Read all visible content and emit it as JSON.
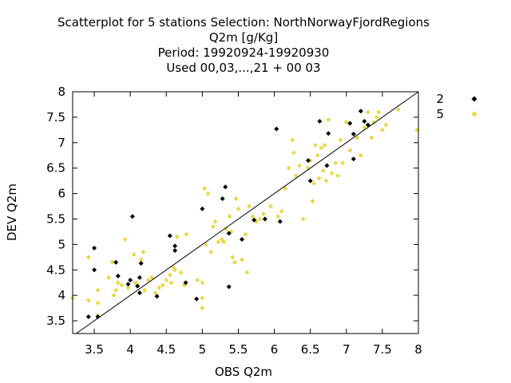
{
  "chart_data": {
    "type": "scatter",
    "title_lines": [
      "Scatterplot for    5 stations Selection: NorthNorwayFjordRegions",
      "Q2m [g/Kg]",
      "Period: 19920924-19920930",
      "Used  00,03,...,21  + 00 03"
    ],
    "xlabel": "OBS Q2m",
    "ylabel": "DEV Q2m",
    "xlim": [
      3.2,
      8.0
    ],
    "ylim": [
      3.25,
      8.0
    ],
    "x_ticks": [
      3.5,
      4,
      4.5,
      5,
      5.5,
      6,
      6.5,
      7,
      7.5,
      8
    ],
    "x_tick_labels": [
      "3.5",
      "4",
      "4.5",
      "5",
      "5.5",
      "6",
      "6.5",
      "7",
      "7.5",
      "8"
    ],
    "y_ticks": [
      3.5,
      4,
      4.5,
      5,
      5.5,
      6,
      6.5,
      7,
      7.5,
      8
    ],
    "y_tick_labels": [
      "3.5",
      "4",
      "4.5",
      "5",
      "5.5",
      "6",
      "6.5",
      "7",
      "7.5",
      "8"
    ],
    "diagonal": true,
    "grid": false,
    "legend_position": "right",
    "series": [
      {
        "name": "2",
        "color": "#000000",
        "marker": "diamond",
        "points": [
          [
            3.42,
            3.58
          ],
          [
            3.5,
            4.5
          ],
          [
            3.5,
            4.93
          ],
          [
            3.55,
            3.58
          ],
          [
            3.8,
            4.65
          ],
          [
            3.83,
            4.38
          ],
          [
            3.97,
            4.22
          ],
          [
            4.0,
            4.3
          ],
          [
            4.03,
            5.55
          ],
          [
            4.1,
            4.18
          ],
          [
            4.13,
            4.35
          ],
          [
            4.13,
            4.05
          ],
          [
            4.15,
            4.63
          ],
          [
            4.37,
            3.98
          ],
          [
            4.55,
            5.17
          ],
          [
            4.62,
            4.97
          ],
          [
            4.62,
            4.88
          ],
          [
            4.77,
            4.25
          ],
          [
            4.92,
            3.93
          ],
          [
            5.0,
            5.7
          ],
          [
            5.28,
            5.9
          ],
          [
            5.32,
            6.13
          ],
          [
            5.37,
            5.22
          ],
          [
            5.37,
            4.17
          ],
          [
            5.55,
            5.1
          ],
          [
            5.72,
            5.48
          ],
          [
            5.87,
            5.5
          ],
          [
            6.03,
            7.27
          ],
          [
            6.08,
            5.45
          ],
          [
            6.47,
            6.65
          ],
          [
            6.5,
            6.25
          ],
          [
            6.63,
            7.42
          ],
          [
            6.73,
            6.55
          ],
          [
            6.75,
            7.18
          ],
          [
            7.05,
            7.38
          ],
          [
            7.1,
            7.17
          ],
          [
            7.1,
            6.68
          ],
          [
            7.2,
            7.62
          ],
          [
            7.25,
            7.42
          ],
          [
            7.3,
            7.35
          ]
        ]
      },
      {
        "name": "5",
        "color": "#e8d84a",
        "marker": "diamond",
        "points": [
          [
            3.2,
            3.95
          ],
          [
            3.42,
            3.9
          ],
          [
            3.42,
            4.75
          ],
          [
            3.55,
            4.1
          ],
          [
            3.55,
            3.85
          ],
          [
            3.55,
            3.6
          ],
          [
            3.7,
            4.35
          ],
          [
            3.75,
            4.65
          ],
          [
            3.77,
            4.0
          ],
          [
            3.8,
            4.1
          ],
          [
            3.83,
            4.25
          ],
          [
            3.88,
            4.2
          ],
          [
            3.93,
            5.1
          ],
          [
            3.97,
            4.15
          ],
          [
            4.05,
            4.8
          ],
          [
            4.07,
            4.25
          ],
          [
            4.1,
            4.2
          ],
          [
            4.15,
            4.7
          ],
          [
            4.18,
            4.85
          ],
          [
            4.2,
            4.1
          ],
          [
            4.25,
            4.3
          ],
          [
            4.3,
            4.35
          ],
          [
            4.35,
            4.05
          ],
          [
            4.4,
            4.15
          ],
          [
            4.45,
            4.2
          ],
          [
            4.5,
            4.3
          ],
          [
            4.55,
            4.4
          ],
          [
            4.57,
            4.25
          ],
          [
            4.6,
            4.55
          ],
          [
            4.62,
            4.5
          ],
          [
            4.65,
            5.15
          ],
          [
            4.7,
            4.45
          ],
          [
            4.75,
            4.2
          ],
          [
            4.78,
            5.2
          ],
          [
            4.93,
            4.3
          ],
          [
            5.0,
            4.25
          ],
          [
            5.0,
            3.95
          ],
          [
            5.0,
            3.75
          ],
          [
            5.03,
            6.1
          ],
          [
            5.05,
            5.0
          ],
          [
            5.08,
            6.0
          ],
          [
            5.12,
            4.85
          ],
          [
            5.15,
            5.35
          ],
          [
            5.18,
            5.45
          ],
          [
            5.22,
            5.05
          ],
          [
            5.27,
            5.1
          ],
          [
            5.3,
            5.05
          ],
          [
            5.33,
            5.3
          ],
          [
            5.38,
            5.55
          ],
          [
            5.4,
            5.25
          ],
          [
            5.42,
            4.75
          ],
          [
            5.45,
            4.65
          ],
          [
            5.47,
            5.9
          ],
          [
            5.5,
            5.7
          ],
          [
            5.55,
            4.7
          ],
          [
            5.6,
            5.2
          ],
          [
            5.62,
            4.45
          ],
          [
            5.65,
            5.75
          ],
          [
            5.7,
            5.55
          ],
          [
            5.75,
            5.45
          ],
          [
            5.8,
            5.5
          ],
          [
            5.85,
            5.6
          ],
          [
            5.95,
            5.75
          ],
          [
            6.05,
            5.55
          ],
          [
            6.1,
            5.65
          ],
          [
            6.15,
            6.1
          ],
          [
            6.2,
            6.5
          ],
          [
            6.25,
            7.05
          ],
          [
            6.27,
            6.8
          ],
          [
            6.3,
            6.35
          ],
          [
            6.35,
            6.55
          ],
          [
            6.4,
            5.5
          ],
          [
            6.47,
            6.5
          ],
          [
            6.5,
            6.65
          ],
          [
            6.53,
            5.85
          ],
          [
            6.55,
            6.2
          ],
          [
            6.57,
            6.95
          ],
          [
            6.6,
            6.75
          ],
          [
            6.62,
            6.3
          ],
          [
            6.65,
            6.9
          ],
          [
            6.68,
            6.45
          ],
          [
            6.7,
            6.95
          ],
          [
            6.72,
            6.25
          ],
          [
            6.75,
            7.45
          ],
          [
            6.8,
            6.4
          ],
          [
            6.85,
            6.6
          ],
          [
            6.88,
            6.35
          ],
          [
            6.92,
            7.05
          ],
          [
            6.95,
            6.6
          ],
          [
            7.0,
            7.4
          ],
          [
            7.05,
            6.85
          ],
          [
            7.15,
            7.1
          ],
          [
            7.2,
            6.75
          ],
          [
            7.25,
            7.3
          ],
          [
            7.3,
            7.6
          ],
          [
            7.35,
            7.1
          ],
          [
            7.38,
            7.4
          ],
          [
            7.42,
            7.5
          ],
          [
            7.45,
            7.6
          ],
          [
            7.5,
            7.25
          ],
          [
            7.55,
            7.35
          ],
          [
            7.72,
            7.65
          ],
          [
            7.98,
            7.25
          ]
        ]
      }
    ]
  }
}
